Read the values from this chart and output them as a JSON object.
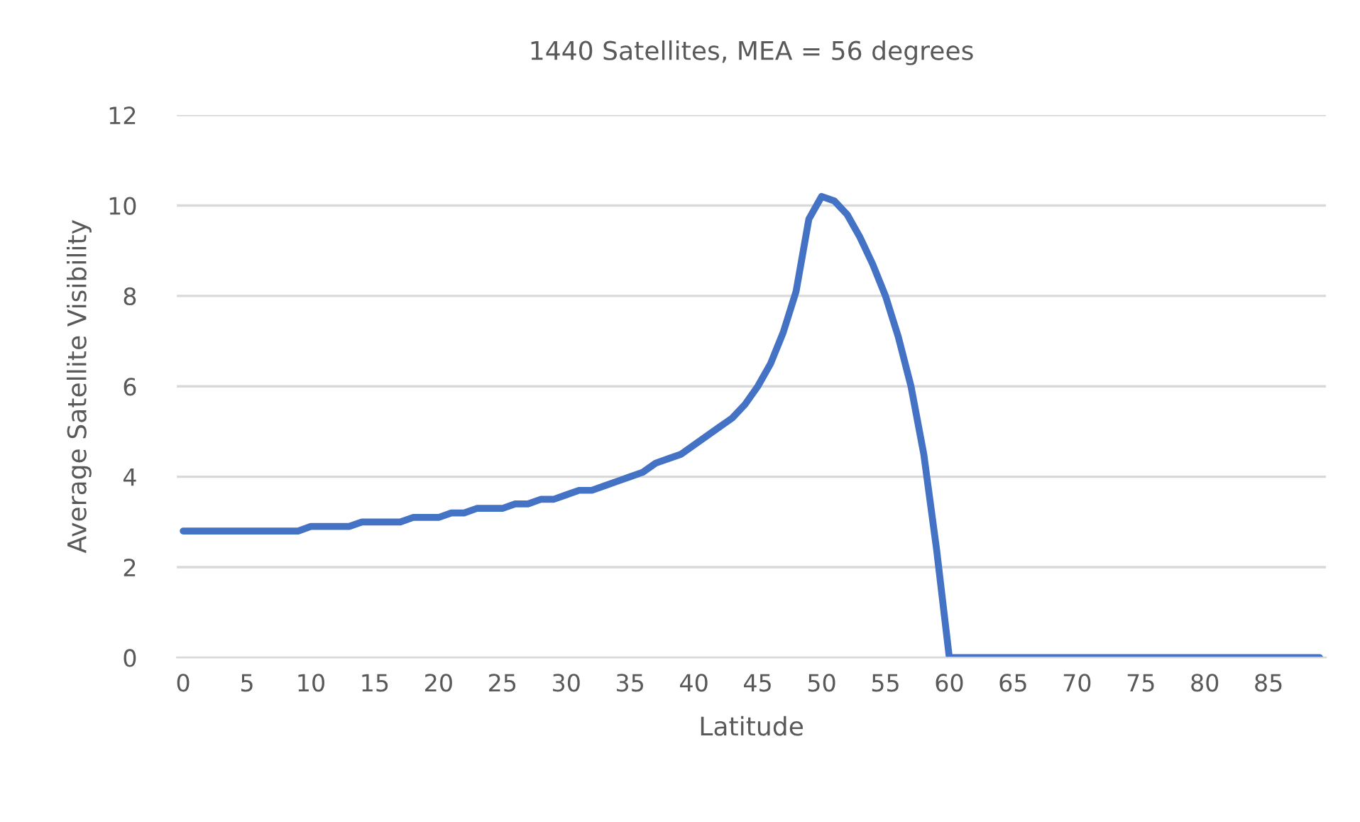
{
  "chart_data": {
    "type": "line",
    "title": "1440 Satellites, MEA = 56 degrees",
    "xlabel": "Latitude",
    "ylabel": "Average Satellite Visibility",
    "categories": [
      "0",
      null,
      null,
      null,
      null,
      "5",
      null,
      null,
      null,
      null,
      "10",
      null,
      null,
      null,
      null,
      "15",
      null,
      null,
      null,
      null,
      "20",
      null,
      null,
      null,
      null,
      "25",
      null,
      null,
      null,
      null,
      "30",
      null,
      null,
      null,
      null,
      "35",
      null,
      null,
      null,
      null,
      "40",
      null,
      null,
      null,
      null,
      "45",
      null,
      null,
      null,
      null,
      "50",
      null,
      null,
      null,
      null,
      "55",
      null,
      null,
      null,
      null,
      "60",
      null,
      null,
      null,
      null,
      "65",
      null,
      null,
      null,
      null,
      "70",
      null,
      null,
      null,
      null,
      "75",
      null,
      null,
      null,
      null,
      "80",
      null,
      null,
      null,
      null,
      "85",
      null,
      null,
      null,
      null
    ],
    "series": [
      {
        "color": "#4472c4",
        "values": [
          2.8,
          2.8,
          2.8,
          2.8,
          2.8,
          2.8,
          2.8,
          2.8,
          2.8,
          2.8,
          2.9,
          2.9,
          2.9,
          2.9,
          3.0,
          3.0,
          3.0,
          3.0,
          3.1,
          3.1,
          3.1,
          3.2,
          3.2,
          3.3,
          3.3,
          3.3,
          3.4,
          3.4,
          3.5,
          3.5,
          3.6,
          3.7,
          3.7,
          3.8,
          3.9,
          4.0,
          4.1,
          4.3,
          4.4,
          4.5,
          4.7,
          4.9,
          5.1,
          5.3,
          5.6,
          6.0,
          6.5,
          7.2,
          8.1,
          9.7,
          10.2,
          10.1,
          9.8,
          9.3,
          8.7,
          8.0,
          7.1,
          6.0,
          4.5,
          2.4,
          0,
          0,
          0,
          0,
          0,
          0,
          0,
          0,
          0,
          0,
          0,
          0,
          0,
          0,
          0,
          0,
          0,
          0,
          0,
          0,
          0,
          0,
          0,
          0,
          0,
          0,
          0,
          0,
          0,
          0
        ]
      }
    ],
    "ylim": [
      0,
      12
    ],
    "yticks": [
      0,
      2,
      4,
      6,
      8,
      10,
      12
    ],
    "grid": "y",
    "legend": false,
    "marker": "none",
    "line_style": "solid"
  }
}
